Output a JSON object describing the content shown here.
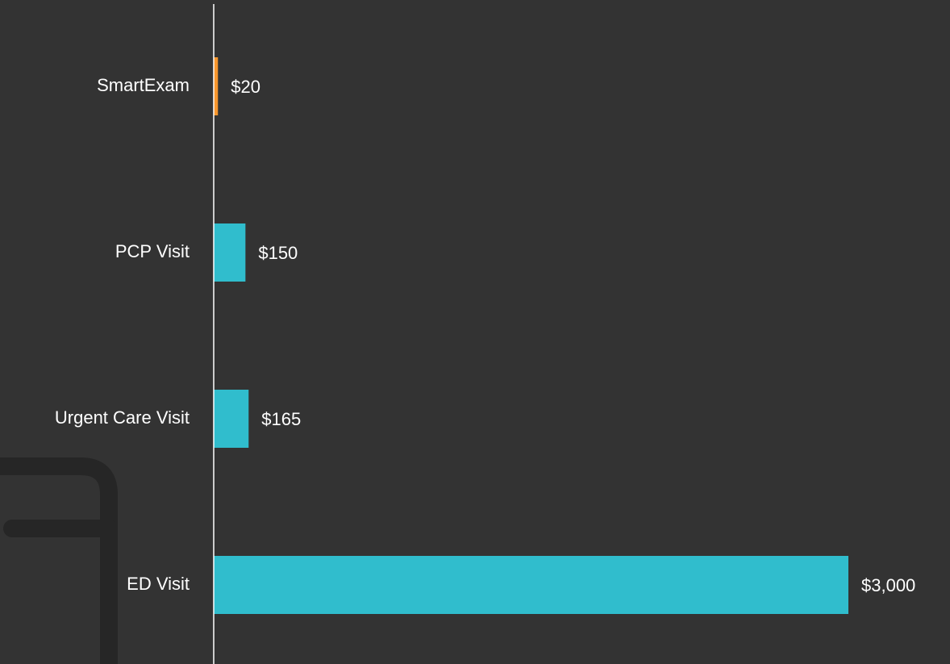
{
  "chart_data": {
    "type": "bar",
    "orientation": "horizontal",
    "categories": [
      "SmartExam",
      "PCP Visit",
      "Urgent Care Visit",
      "ED Visit"
    ],
    "values": [
      20,
      150,
      165,
      3000
    ],
    "value_labels": [
      "$20",
      "$150",
      "$165",
      "$3,000"
    ],
    "colors": [
      "#f7962c",
      "#30bdcd",
      "#30bdcd",
      "#30bdcd"
    ],
    "xlim": [
      0,
      3000
    ]
  }
}
